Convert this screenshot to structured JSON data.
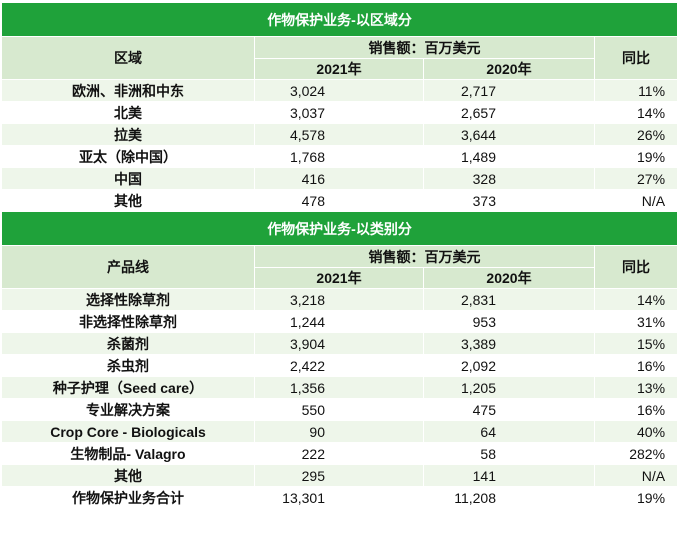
{
  "region_section": {
    "title": "作物保护业务-以区域分",
    "col_label": "区域",
    "sales_header": "销售额：百万美元",
    "year_2021": "2021年",
    "year_2020": "2020年",
    "yoy_header": "同比",
    "rows": [
      {
        "label": "欧洲、非洲和中东",
        "v2021": "3,024",
        "v2020": "2,717",
        "yoy": "11%"
      },
      {
        "label": "北美",
        "v2021": "3,037",
        "v2020": "2,657",
        "yoy": "14%"
      },
      {
        "label": "拉美",
        "v2021": "4,578",
        "v2020": "3,644",
        "yoy": "26%"
      },
      {
        "label": "亚太（除中国）",
        "v2021": "1,768",
        "v2020": "1,489",
        "yoy": "19%"
      },
      {
        "label": "中国",
        "v2021": "416",
        "v2020": "328",
        "yoy": "27%"
      },
      {
        "label": "其他",
        "v2021": "478",
        "v2020": "373",
        "yoy": "N/A"
      }
    ]
  },
  "category_section": {
    "title": "作物保护业务-以类别分",
    "col_label": "产品线",
    "sales_header": "销售额：百万美元",
    "year_2021": "2021年",
    "year_2020": "2020年",
    "yoy_header": "同比",
    "rows": [
      {
        "label": "选择性除草剂",
        "v2021": "3,218",
        "v2020": "2,831",
        "yoy": "14%"
      },
      {
        "label": "非选择性除草剂",
        "v2021": "1,244",
        "v2020": "953",
        "yoy": "31%"
      },
      {
        "label": "杀菌剂",
        "v2021": "3,904",
        "v2020": "3,389",
        "yoy": "15%"
      },
      {
        "label": "杀虫剂",
        "v2021": "2,422",
        "v2020": "2,092",
        "yoy": "16%"
      },
      {
        "label": "种子护理（Seed care）",
        "v2021": "1,356",
        "v2020": "1,205",
        "yoy": "13%"
      },
      {
        "label": "专业解决方案",
        "v2021": "550",
        "v2020": "475",
        "yoy": "16%"
      },
      {
        "label": "Crop Core - Biologicals",
        "v2021": "90",
        "v2020": "64",
        "yoy": "40%"
      },
      {
        "label": "生物制品- Valagro",
        "v2021": "222",
        "v2020": "58",
        "yoy": "282%"
      },
      {
        "label": "其他",
        "v2021": "295",
        "v2020": "141",
        "yoy": "N/A"
      },
      {
        "label": "作物保护业务合计",
        "v2021": "13,301",
        "v2020": "11,208",
        "yoy": "19%"
      }
    ]
  },
  "colors": {
    "title_bar": "#1fa23a",
    "header_bg": "#d7e9cf",
    "stripe_bg": "#eef6ea"
  }
}
